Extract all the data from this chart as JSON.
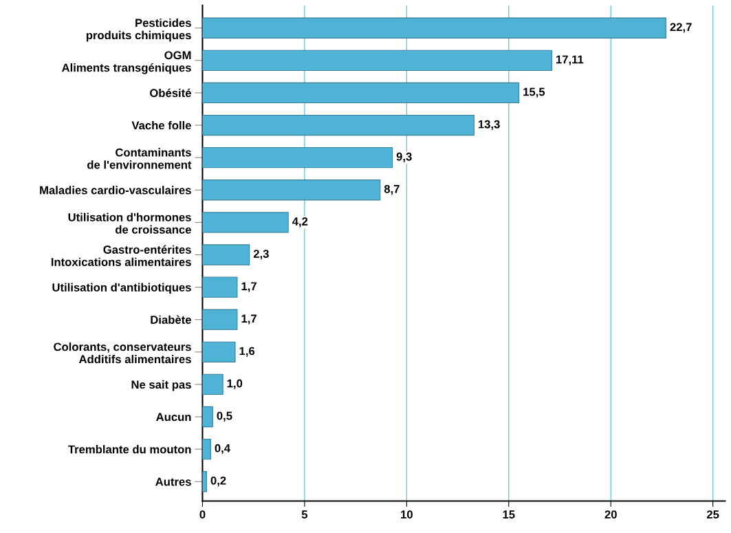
{
  "chart_data": {
    "type": "bar",
    "orientation": "horizontal",
    "categories": [
      "Pesticides\nproduits chimiques",
      "OGM\nAliments transgéniques",
      "Obésité",
      "Vache folle",
      "Contaminants\nde l'environnement",
      "Maladies cardio-vasculaires",
      "Utilisation d'hormones\nde croissance",
      "Gastro-entérites\nIntoxications alimentaires",
      "Utilisation d'antibiotiques",
      "Diabète",
      "Colorants, conservateurs\nAdditifs alimentaires",
      "Ne sait pas",
      "Aucun",
      "Tremblante du mouton",
      "Autres"
    ],
    "values": [
      22.7,
      17.11,
      15.5,
      13.3,
      9.3,
      8.7,
      4.2,
      2.3,
      1.7,
      1.7,
      1.6,
      1.0,
      0.5,
      0.4,
      0.2
    ],
    "value_labels": [
      "22,7",
      "17,11",
      "15,5",
      "13,3",
      "9,3",
      "8,7",
      "4,2",
      "2,3",
      "1,7",
      "1,7",
      "1,6",
      "1,0",
      "0,5",
      "0,4",
      "0,2"
    ],
    "color": "#4fb3d6",
    "xlim": [
      0,
      25.6
    ],
    "xticks": [
      0,
      5,
      10,
      15,
      20,
      25
    ],
    "grid": "x"
  }
}
